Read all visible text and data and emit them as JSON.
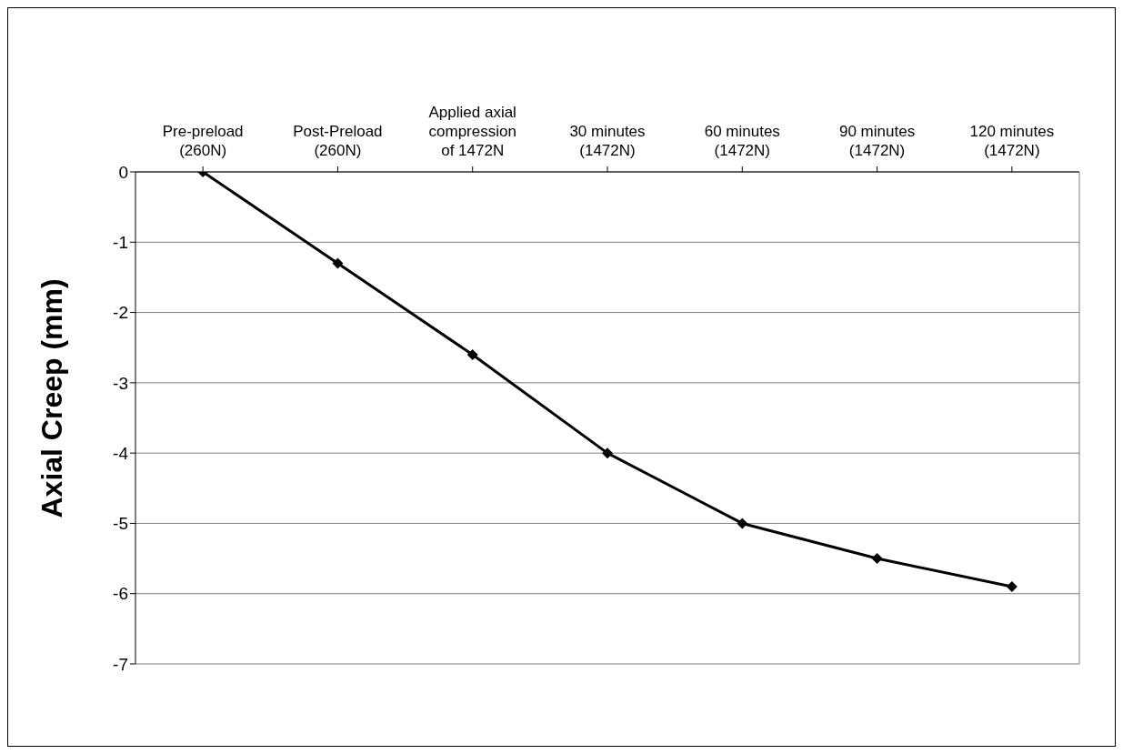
{
  "chart_data": {
    "type": "line",
    "ylabel": "Axial Creep (mm)",
    "categories": [
      "Pre-preload\n(260N)",
      "Post-Preload\n(260N)",
      "Applied axial\ncompression\nof 1472N",
      "30 minutes\n(1472N)",
      "60 minutes\n(1472N)",
      "90 minutes\n(1472N)",
      "120 minutes\n(1472N)"
    ],
    "series": [
      {
        "color": "#000000",
        "values": [
          0,
          -1.3,
          -2.6,
          -4.0,
          -5.0,
          -5.5,
          -5.9
        ]
      }
    ],
    "ylim": [
      -7,
      0
    ],
    "yticks": [
      0,
      -1,
      -2,
      -3,
      -4,
      -5,
      -6,
      -7
    ],
    "grid": "y",
    "marker": "diamond",
    "line_style": "solid",
    "legend": false
  }
}
